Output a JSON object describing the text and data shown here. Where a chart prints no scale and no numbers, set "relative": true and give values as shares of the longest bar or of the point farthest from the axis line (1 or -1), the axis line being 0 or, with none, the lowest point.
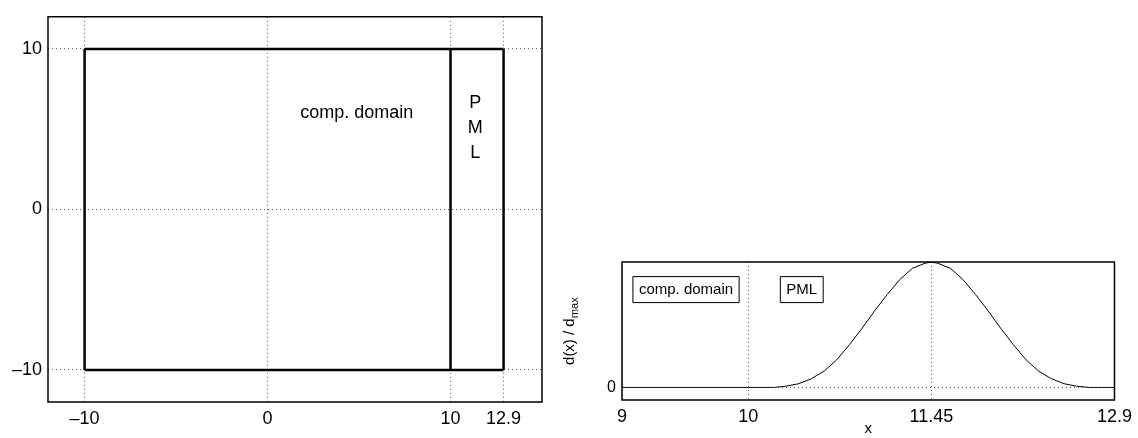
{
  "chart_data": [
    {
      "type": "line",
      "xlim": [
        -12,
        15
      ],
      "ylim": [
        -12,
        12
      ],
      "xticks": [
        {
          "value": -10,
          "label": "–10"
        },
        0,
        10,
        12.9
      ],
      "yticks": [
        {
          "value": -10,
          "label": "–10"
        },
        0,
        10
      ],
      "grid": true,
      "marker": "none",
      "line_style": "solid",
      "series": [
        {
          "color": "#000000",
          "x": [
            -10,
            12.9
          ],
          "values": [
            10,
            10
          ]
        },
        {
          "color": "#000000",
          "x": [
            -10,
            12.9
          ],
          "values": [
            -10,
            -10
          ]
        },
        {
          "color": "#000000",
          "x": [
            -10,
            -10
          ],
          "values": [
            -10,
            10
          ]
        },
        {
          "color": "#000000",
          "x": [
            10,
            10
          ],
          "values": [
            -10,
            10
          ]
        },
        {
          "color": "#000000",
          "x": [
            12.9,
            12.9
          ],
          "values": [
            -10,
            10
          ]
        }
      ],
      "annotations": [
        "comp. domain",
        "P\nM\nL"
      ]
    },
    {
      "type": "line",
      "xlabel": "x",
      "ylabel": "d(x) / d$_{max}$",
      "relative": true,
      "xlim": [
        9,
        12.9
      ],
      "xticks": [
        9,
        10,
        11.45,
        12.9
      ],
      "grid": "x",
      "marker": "none",
      "line_style": "solid",
      "series": [
        {
          "color": "#000000",
          "x": [
            9,
            9.5,
            10,
            10.1,
            10.2,
            10.3,
            10.4,
            10.5,
            10.6,
            10.7,
            10.8,
            10.9,
            11.0,
            11.1,
            11.2,
            11.3,
            11.4,
            11.45,
            11.5,
            11.6,
            11.7,
            11.8,
            11.9,
            12.0,
            12.1,
            12.2,
            12.3,
            12.4,
            12.5,
            12.6,
            12.7,
            12.8,
            12.9
          ],
          "values": [
            0,
            0,
            0,
            0,
            0,
            0.01,
            0.03,
            0.07,
            0.13,
            0.22,
            0.34,
            0.47,
            0.61,
            0.74,
            0.86,
            0.95,
            0.99,
            1,
            0.99,
            0.95,
            0.86,
            0.74,
            0.61,
            0.47,
            0.34,
            0.22,
            0.13,
            0.07,
            0.03,
            0.01,
            0,
            0,
            0
          ]
        }
      ],
      "ref_lines": [
        {
          "axis": "y",
          "value": 0,
          "label": "0",
          "line_style": "dotted"
        }
      ],
      "annotations": [
        "comp. domain",
        "PML"
      ]
    }
  ]
}
